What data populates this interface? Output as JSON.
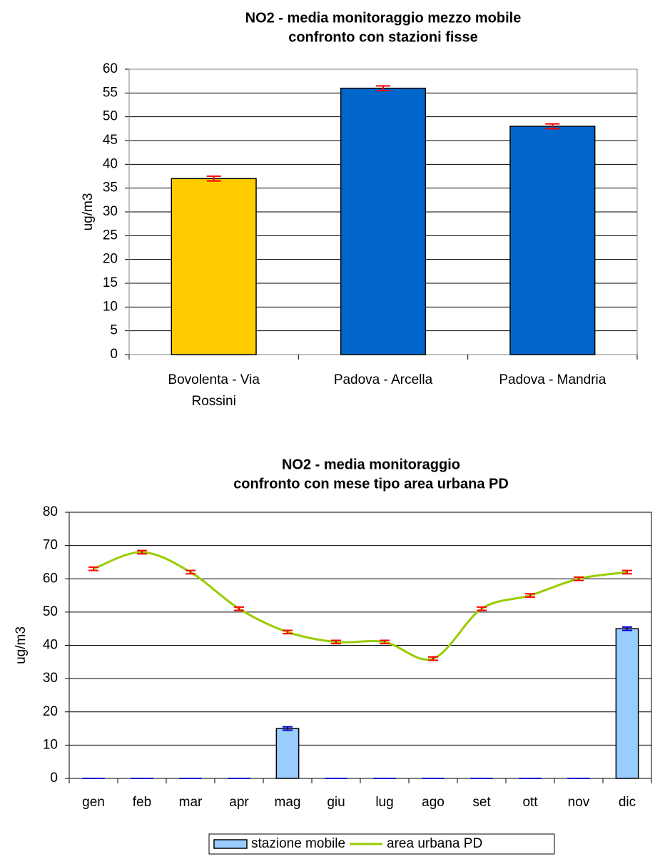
{
  "chart_data": [
    {
      "type": "bar",
      "title": [
        "NO2 - media monitoraggio mezzo mobile",
        "confronto con stazioni fisse"
      ],
      "y_label": "ug/m3",
      "categories": [
        [
          "Bovolenta - Via",
          "Rossini"
        ],
        [
          "Padova - Arcella"
        ],
        [
          "Padova - Mandria"
        ]
      ],
      "values": [
        37,
        56,
        48
      ],
      "errors": [
        0.5,
        0.5,
        0.5
      ],
      "colors": [
        "#ffcc00",
        "#0066cc",
        "#0066cc"
      ],
      "error_color": "#ff0000",
      "ylim": [
        0,
        60
      ],
      "yticks": [
        0,
        5,
        10,
        15,
        20,
        25,
        30,
        35,
        40,
        45,
        50,
        55,
        60
      ],
      "grid": true
    },
    {
      "type": "bar-line",
      "title": [
        "NO2 - media monitoraggio",
        "confronto con mese tipo area urbana PD"
      ],
      "y_label": "ug/m3",
      "categories": [
        "gen",
        "feb",
        "mar",
        "apr",
        "mag",
        "giu",
        "lug",
        "ago",
        "set",
        "ott",
        "nov",
        "dic"
      ],
      "series": [
        {
          "name": "stazione mobile",
          "kind": "bar",
          "color": "#99ccff",
          "error_color": "#0000cc",
          "values": [
            0,
            0,
            0,
            0,
            15,
            0,
            0,
            0,
            0,
            0,
            0,
            45
          ],
          "errors": [
            null,
            null,
            null,
            null,
            0.5,
            null,
            null,
            null,
            null,
            null,
            null,
            0.5
          ]
        },
        {
          "name": "area urbana PD",
          "kind": "line",
          "color": "#99cc00",
          "error_color": "#ff0000",
          "values": [
            63,
            68,
            62,
            51,
            44,
            41,
            41,
            36,
            51,
            55,
            60,
            62
          ],
          "errors": [
            0.5,
            0.5,
            0.5,
            0.5,
            0.5,
            0.5,
            0.5,
            0.5,
            0.5,
            0.5,
            0.5,
            0.5
          ]
        }
      ],
      "legend": "bottom",
      "ylim": [
        0,
        80
      ],
      "yticks": [
        0,
        10,
        20,
        30,
        40,
        50,
        60,
        70,
        80
      ],
      "grid": true
    }
  ]
}
